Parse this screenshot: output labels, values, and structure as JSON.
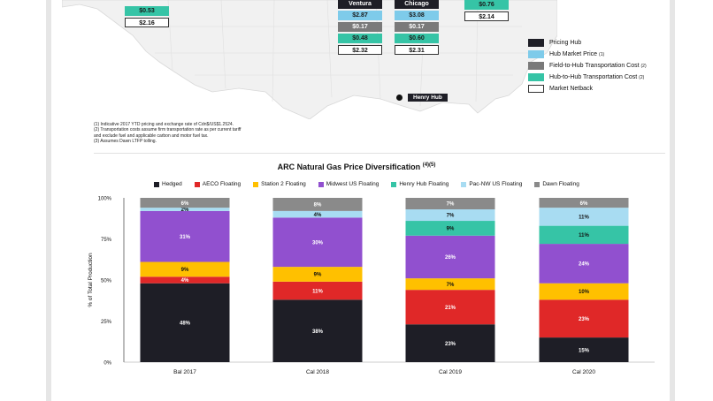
{
  "map": {
    "callouts": [
      {
        "id": "west",
        "header": "",
        "hub": "",
        "fth": "",
        "hth": "$0.53",
        "netback": "$2.16"
      },
      {
        "id": "ventura",
        "header": "Ventura",
        "hub": "$2.87",
        "fth": "$0.17",
        "hth": "$0.48",
        "netback": "$2.32"
      },
      {
        "id": "chicago",
        "header": "Chicago",
        "hub": "$3.08",
        "fth": "$0.17",
        "hth": "$0.60",
        "netback": "$2.31"
      },
      {
        "id": "east",
        "header": "",
        "hub": "",
        "fth": "",
        "hth": "$0.76",
        "netback": "$2.14"
      }
    ],
    "henry_hub": "Henry Hub",
    "legend": [
      {
        "label": "Pricing Hub",
        "sup": "",
        "color": "#1e1e26"
      },
      {
        "label": "Hub Market Price",
        "sup": "(1)",
        "color": "#7ecbea"
      },
      {
        "label": "Field-to-Hub Transportation Cost",
        "sup": "(2)",
        "color": "#7a7a7a"
      },
      {
        "label": "Hub-to-Hub Transportation Cost",
        "sup": "(2)",
        "color": "#36c4a6"
      },
      {
        "label": "Market Netback",
        "sup": "",
        "color": "#ffffff"
      }
    ],
    "footnotes": [
      "(1)   Indicative 2017 YTD pricing and exchange rate of Cdn$/US$1.2524.",
      "(2)   Transportation costs assume firm transportation rate as per current tariff",
      "        and exclude fuel and applicable carbon and motor fuel tax.",
      "(3)   Assumes Dawn LTFP tolling."
    ]
  },
  "chart_data": {
    "type": "bar",
    "stacked": true,
    "title": "ARC Natural Gas Price Diversification",
    "title_sup": "(4)(5)",
    "ylabel": "% of Total Production",
    "ylim": [
      0,
      100
    ],
    "yticks": [
      "0%",
      "25%",
      "50%",
      "75%",
      "100%"
    ],
    "categories": [
      "Bal 2017",
      "Cal 2018",
      "Cal 2019",
      "Cal 2020"
    ],
    "legend_position": "top",
    "series": [
      {
        "name": "Hedged",
        "color": "#1e1e26",
        "values": [
          48,
          38,
          23,
          15
        ],
        "labels": [
          "48%",
          "38%",
          "23%",
          "15%"
        ]
      },
      {
        "name": "AECO Floating",
        "color": "#e02828",
        "values": [
          4,
          11,
          21,
          23
        ],
        "labels": [
          "4%",
          "11%",
          "21%",
          "23%"
        ]
      },
      {
        "name": "Station 2 Floating",
        "color": "#ffc000",
        "values": [
          9,
          9,
          7,
          10
        ],
        "labels": [
          "9%",
          "9%",
          "7%",
          "10%"
        ]
      },
      {
        "name": "Midwest US Floating",
        "color": "#9150cf",
        "values": [
          31,
          30,
          26,
          24
        ],
        "labels": [
          "31%",
          "30%",
          "26%",
          "24%"
        ]
      },
      {
        "name": "Henry Hub Floating",
        "color": "#36c4a6",
        "values": [
          0,
          0,
          9,
          11
        ],
        "labels": [
          "",
          "",
          "9%",
          "11%"
        ]
      },
      {
        "name": "Pac-NW US Floating",
        "color": "#a8dcf2",
        "values": [
          2,
          4,
          7,
          11
        ],
        "labels": [
          "2%",
          "4%",
          "7%",
          "11%"
        ]
      },
      {
        "name": "Dawn Floating",
        "color": "#8a8a8a",
        "values": [
          6,
          8,
          7,
          6
        ],
        "labels": [
          "6%",
          "8%",
          "7%",
          "6%"
        ]
      }
    ]
  }
}
